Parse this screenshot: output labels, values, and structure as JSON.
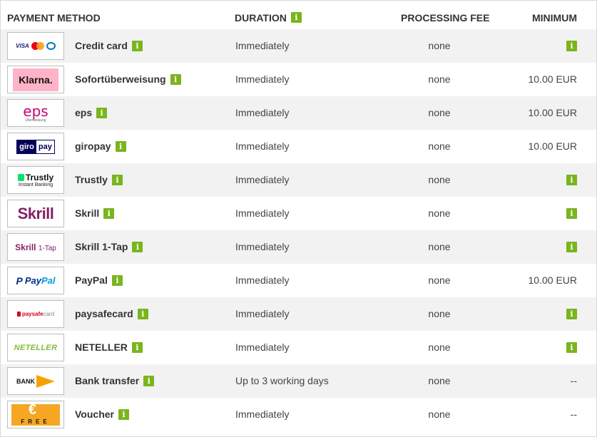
{
  "header": {
    "payment_method": "PAYMENT METHOD",
    "duration": "DURATION",
    "processing_fee": "PROCESSING FEE",
    "minimum": "MINIMUM",
    "info_glyph": "i"
  },
  "logos": {
    "cards_visa": "VISA",
    "klarna": "Klarna.",
    "eps": "eps",
    "eps_sub": "Überweisung",
    "giro_left": "giro",
    "giro_right": "pay",
    "trustly": "Trustly",
    "trustly_sub": "Instant Banking",
    "skrill": "Skrill",
    "skrill1_left": "Skrill",
    "skrill1_right": "1-Tap",
    "paypal_mark": "P",
    "paypal_left": "Pay",
    "paypal_right": "Pal",
    "psc_left": "paysafe",
    "psc_right": "card",
    "neteller": "NETELLER",
    "bank": "BANK",
    "voucher_symbol": "€",
    "voucher_text": "FREE"
  },
  "rows": [
    {
      "name": "Credit card",
      "duration": "Immediately",
      "fee": "none",
      "minimum": ""
    },
    {
      "name": "Sofortüberweisung",
      "duration": "Immediately",
      "fee": "none",
      "minimum": "10.00 EUR"
    },
    {
      "name": "eps",
      "duration": "Immediately",
      "fee": "none",
      "minimum": "10.00 EUR"
    },
    {
      "name": "giropay",
      "duration": "Immediately",
      "fee": "none",
      "minimum": "10.00 EUR"
    },
    {
      "name": "Trustly",
      "duration": "Immediately",
      "fee": "none",
      "minimum": ""
    },
    {
      "name": "Skrill",
      "duration": "Immediately",
      "fee": "none",
      "minimum": ""
    },
    {
      "name": "Skrill 1-Tap",
      "duration": "Immediately",
      "fee": "none",
      "minimum": ""
    },
    {
      "name": "PayPal",
      "duration": "Immediately",
      "fee": "none",
      "minimum": "10.00 EUR"
    },
    {
      "name": "paysafecard",
      "duration": "Immediately",
      "fee": "none",
      "minimum": ""
    },
    {
      "name": "NETELLER",
      "duration": "Immediately",
      "fee": "none",
      "minimum": ""
    },
    {
      "name": "Bank transfer",
      "duration": "Up to 3 working days",
      "fee": "none",
      "minimum": "--"
    },
    {
      "name": "Voucher",
      "duration": "Immediately",
      "fee": "none",
      "minimum": "--"
    }
  ]
}
